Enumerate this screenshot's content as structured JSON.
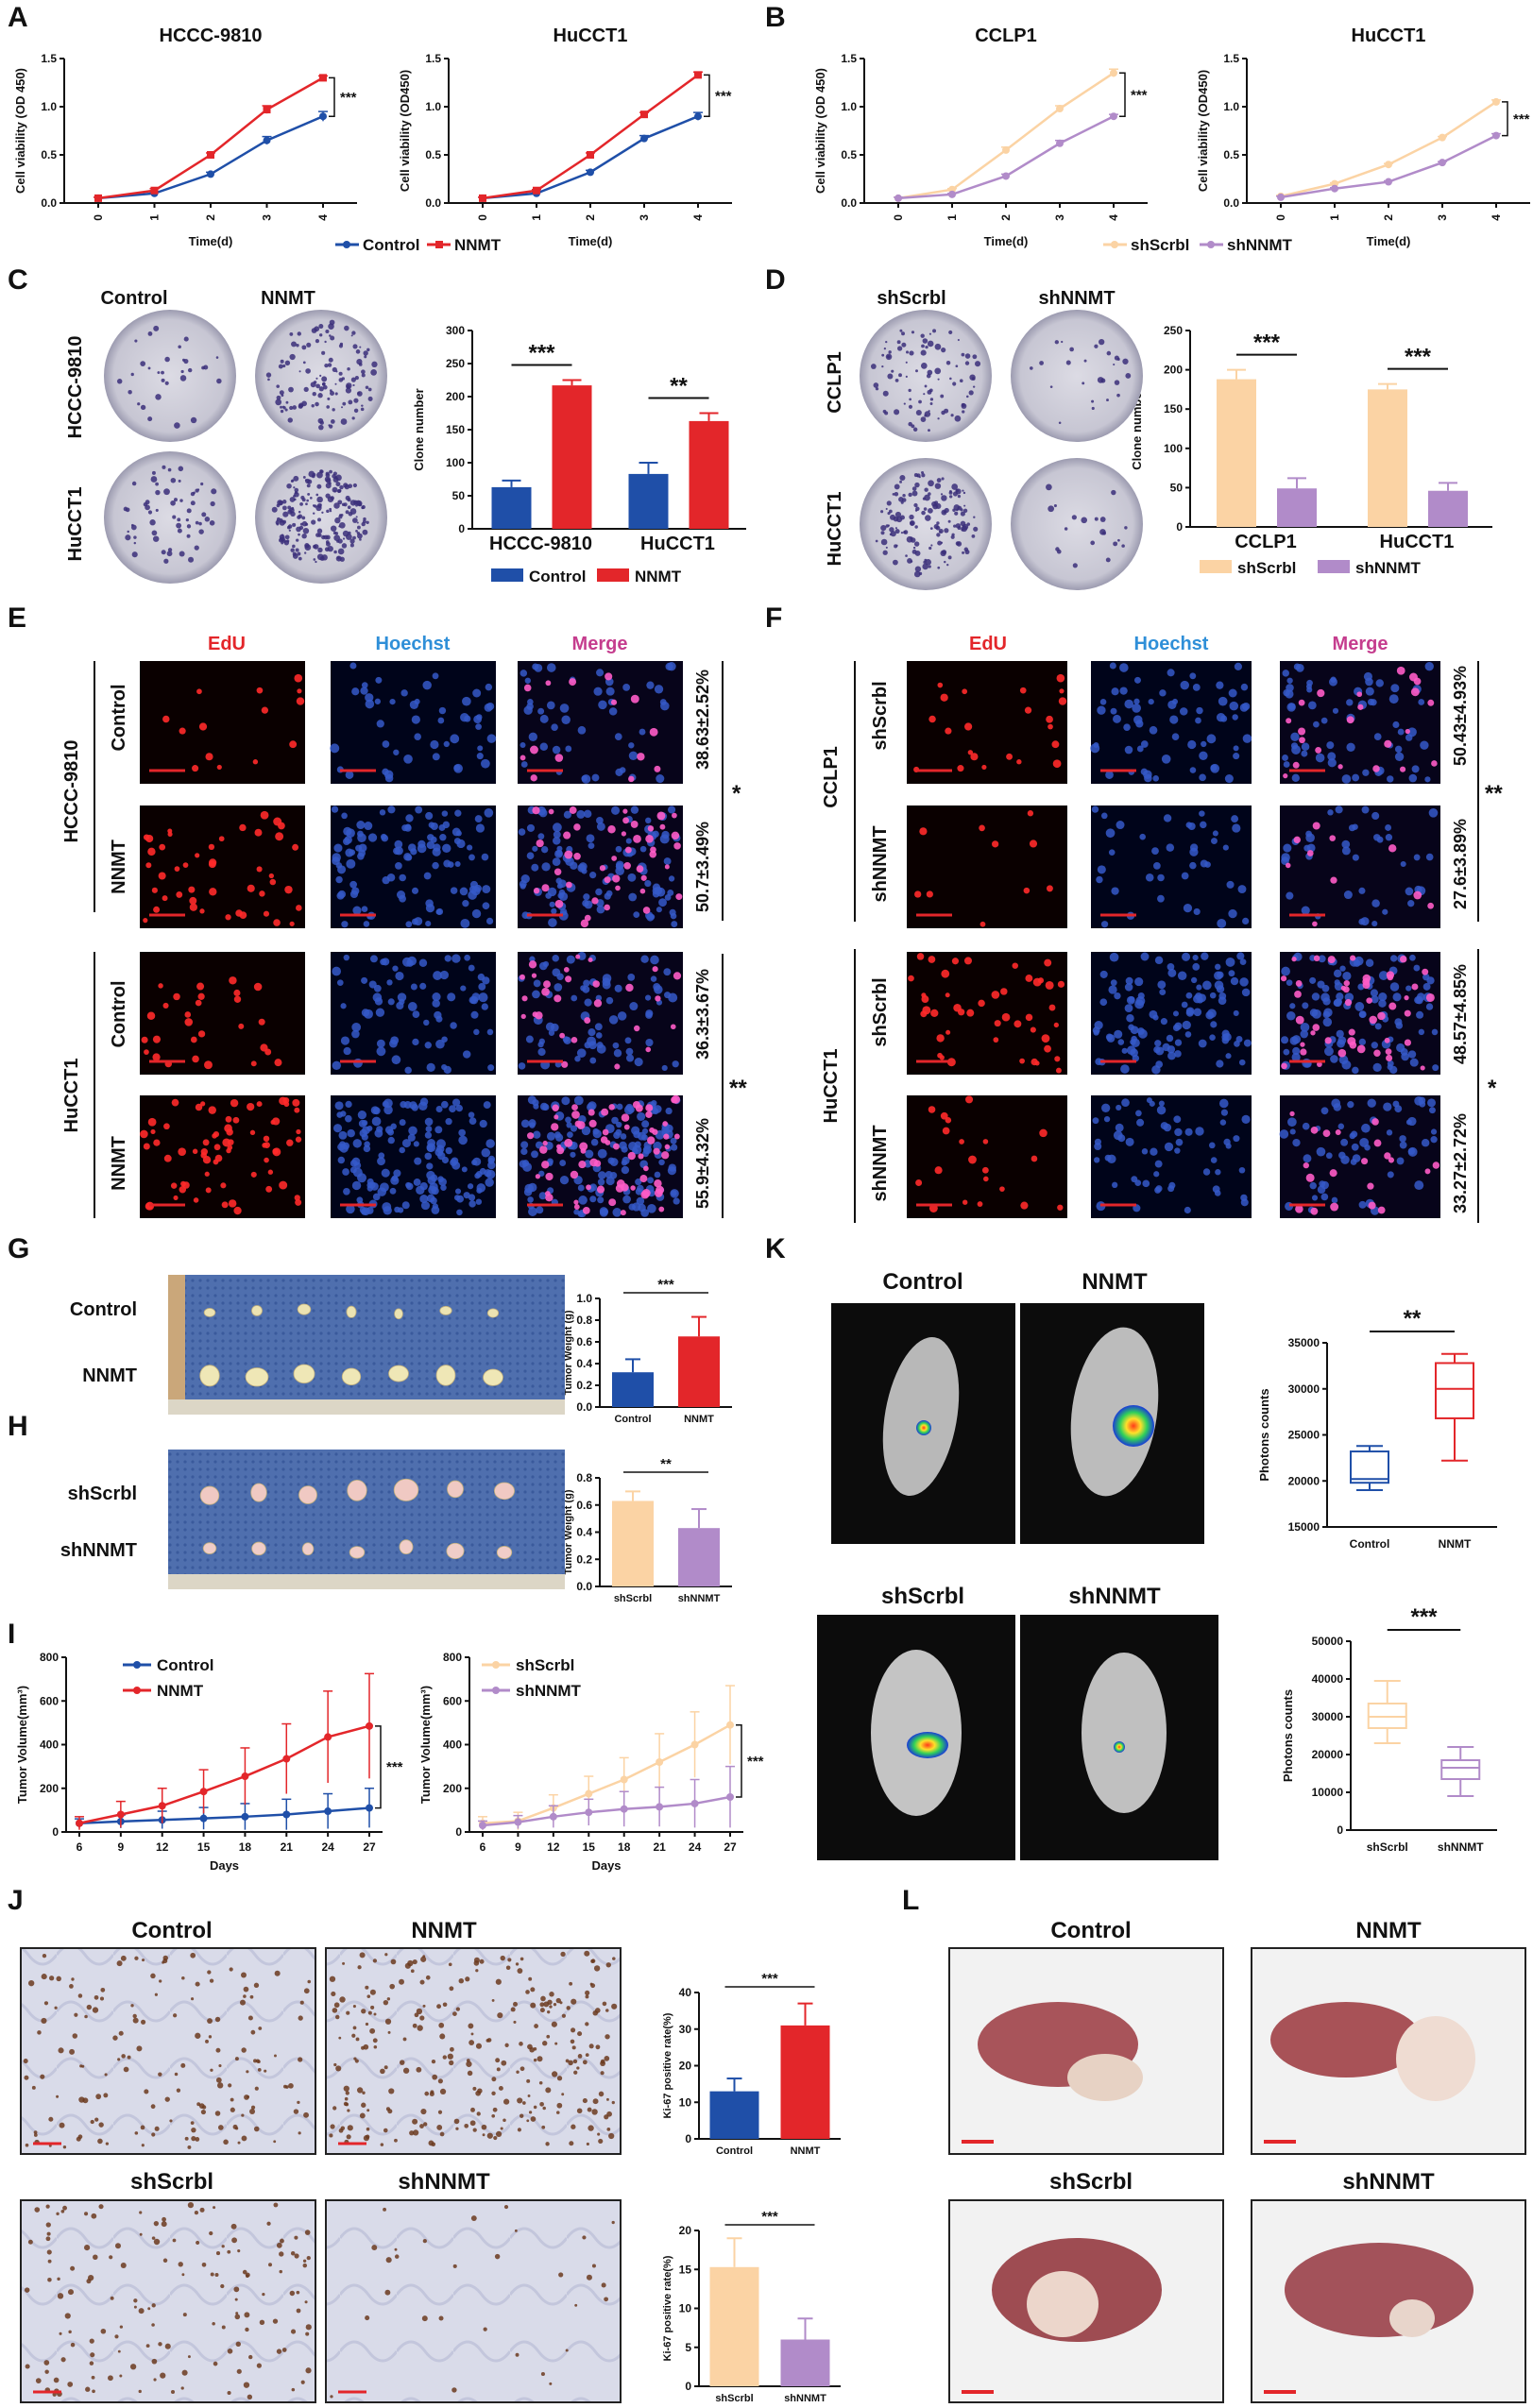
{
  "panels": {
    "A": "A",
    "B": "B",
    "C": "C",
    "D": "D",
    "E": "E",
    "F": "F",
    "G": "G",
    "H": "H",
    "I": "I",
    "J": "J",
    "K": "K",
    "L": "L"
  },
  "colors": {
    "control": "#1f4fa8",
    "nnmt": "#e3262a",
    "shscrbl": "#fbd3a4",
    "shnnmt": "#b18bc9",
    "edu": "#e3262a",
    "hoechst": "#2f8fd8",
    "merge": "#c53d8e"
  },
  "growth_common": {
    "x_label": "Time(d)",
    "y_label_a": "Cell viability (OD 450)",
    "y_label_b": "Cell viability (OD450)",
    "x_ticks": [
      "0",
      "1",
      "2",
      "3",
      "4"
    ],
    "y_ticks": [
      "0.0",
      "0.5",
      "1.0",
      "1.5"
    ]
  },
  "legend_A": [
    "Control",
    "NNMT"
  ],
  "legend_B": [
    "shScrbl",
    "shNNMT"
  ],
  "panel_C": {
    "col_titles": [
      "Control",
      "NNMT"
    ],
    "row_labels": [
      "HCCC-9810",
      "HuCCT1"
    ],
    "legend": [
      "Control",
      "NNMT"
    ]
  },
  "panel_D": {
    "col_titles": [
      "shScrbl",
      "shNNMT"
    ],
    "row_labels": [
      "CCLP1",
      "HuCCT1"
    ],
    "legend": [
      "shScrbl",
      "shNNMT"
    ]
  },
  "panel_E": {
    "channels": [
      "EdU",
      "Hoechst",
      "Merge"
    ],
    "groups": [
      "HCCC-9810",
      "HuCCT1"
    ],
    "rows": [
      "Control",
      "NNMT",
      "Control",
      "NNMT"
    ],
    "pcts": [
      "38.63±2.52%",
      "50.7±3.49%",
      "36.3±3.67%",
      "55.9±4.32%"
    ],
    "sigs": [
      "*",
      "**"
    ]
  },
  "panel_F": {
    "channels": [
      "EdU",
      "Hoechst",
      "Merge"
    ],
    "groups": [
      "CCLP1",
      "HuCCT1"
    ],
    "rows": [
      "shScrbl",
      "shNNMT",
      "shScrbl",
      "shNNMT"
    ],
    "pcts": [
      "50.43±4.93%",
      "27.6±3.89%",
      "48.57±4.85%",
      "33.27±2.72%"
    ],
    "sigs": [
      "**",
      "*"
    ]
  },
  "panel_G": {
    "rows": [
      "Control",
      "NNMT"
    ]
  },
  "panel_H": {
    "rows": [
      "shScrbl",
      "shNNMT"
    ]
  },
  "panel_K": {
    "titles_top": [
      "Control",
      "NNMT"
    ],
    "titles_bottom": [
      "shScrbl",
      "shNNMT"
    ]
  },
  "panel_J": {
    "titles_top": [
      "Control",
      "NNMT"
    ],
    "titles_bottom": [
      "shScrbl",
      "shNNMT"
    ]
  },
  "panel_L": {
    "titles_top": [
      "Control",
      "NNMT"
    ],
    "titles_bottom": [
      "shScrbl",
      "shNNMT"
    ]
  },
  "chart_data": [
    {
      "id": "A1",
      "type": "line",
      "title": "HCCC-9810",
      "xlabel": "Time(d)",
      "ylabel": "Cell viability (OD 450)",
      "x": [
        0,
        1,
        2,
        3,
        4
      ],
      "ylim": [
        0,
        1.5
      ],
      "sig": "***",
      "series": [
        {
          "name": "Control",
          "values": [
            0.05,
            0.1,
            0.3,
            0.65,
            0.9
          ],
          "err": [
            0.01,
            0.01,
            0.02,
            0.04,
            0.05
          ]
        },
        {
          "name": "NNMT",
          "values": [
            0.05,
            0.13,
            0.5,
            0.97,
            1.3
          ],
          "err": [
            0.01,
            0.02,
            0.02,
            0.04,
            0.02
          ]
        }
      ]
    },
    {
      "id": "A2",
      "type": "line",
      "title": "HuCCT1",
      "xlabel": "Time(d)",
      "ylabel": "Cell viability (OD450)",
      "x": [
        0,
        1,
        2,
        3,
        4
      ],
      "ylim": [
        0,
        1.5
      ],
      "sig": "***",
      "series": [
        {
          "name": "Control",
          "values": [
            0.05,
            0.1,
            0.32,
            0.67,
            0.9
          ],
          "err": [
            0.01,
            0.01,
            0.02,
            0.03,
            0.04
          ]
        },
        {
          "name": "NNMT",
          "values": [
            0.05,
            0.13,
            0.5,
            0.92,
            1.33
          ],
          "err": [
            0.01,
            0.01,
            0.02,
            0.02,
            0.03
          ]
        }
      ]
    },
    {
      "id": "B1",
      "type": "line",
      "title": "CCLP1",
      "xlabel": "Time(d)",
      "ylabel": "Cell viability (OD 450)",
      "x": [
        0,
        1,
        2,
        3,
        4
      ],
      "ylim": [
        0,
        1.5
      ],
      "sig": "***",
      "series": [
        {
          "name": "shScrbl",
          "values": [
            0.05,
            0.14,
            0.55,
            0.98,
            1.35
          ],
          "err": [
            0.01,
            0.01,
            0.03,
            0.03,
            0.04
          ]
        },
        {
          "name": "shNNMT",
          "values": [
            0.05,
            0.09,
            0.28,
            0.62,
            0.9
          ],
          "err": [
            0.01,
            0.01,
            0.02,
            0.03,
            0.02
          ]
        }
      ]
    },
    {
      "id": "B2",
      "type": "line",
      "title": "HuCCT1",
      "xlabel": "Time(d)",
      "ylabel": "Cell viability (OD450)",
      "x": [
        0,
        1,
        2,
        3,
        4
      ],
      "ylim": [
        0,
        1.5
      ],
      "sig": "***",
      "series": [
        {
          "name": "shScrbl",
          "values": [
            0.07,
            0.2,
            0.4,
            0.68,
            1.05
          ],
          "err": [
            0.01,
            0.01,
            0.01,
            0.01,
            0.02
          ]
        },
        {
          "name": "shNNMT",
          "values": [
            0.06,
            0.15,
            0.22,
            0.42,
            0.7
          ],
          "err": [
            0.01,
            0.01,
            0.01,
            0.01,
            0.02
          ]
        }
      ]
    },
    {
      "id": "C",
      "type": "bar",
      "ylabel": "Clone number",
      "categories": [
        "HCCC-9810",
        "HuCCT1"
      ],
      "ylim": [
        0,
        300
      ],
      "yticks": [
        "0",
        "50",
        "100",
        "150",
        "200",
        "250",
        "300"
      ],
      "sig": [
        "***",
        "**"
      ],
      "series": [
        {
          "name": "Control",
          "values": [
            63,
            83
          ],
          "err": [
            10,
            17
          ]
        },
        {
          "name": "NNMT",
          "values": [
            217,
            163
          ],
          "err": [
            8,
            12
          ]
        }
      ]
    },
    {
      "id": "D",
      "type": "bar",
      "ylabel": "Clone number",
      "categories": [
        "CCLP1",
        "HuCCT1"
      ],
      "ylim": [
        0,
        250
      ],
      "yticks": [
        "0",
        "50",
        "100",
        "150",
        "200",
        "250"
      ],
      "sig": [
        "***",
        "***"
      ],
      "series": [
        {
          "name": "shScrbl",
          "values": [
            188,
            175
          ],
          "err": [
            12,
            7
          ]
        },
        {
          "name": "shNNMT",
          "values": [
            49,
            46
          ],
          "err": [
            13,
            10
          ]
        }
      ]
    },
    {
      "id": "G",
      "type": "bar",
      "ylabel": "Tumor Weight (g)",
      "categories": [
        "Control",
        "NNMT"
      ],
      "ylim": [
        0,
        1.0
      ],
      "yticks": [
        "0.0",
        "0.2",
        "0.4",
        "0.6",
        "0.8",
        "1.0"
      ],
      "sig": "***",
      "values": [
        0.32,
        0.65
      ],
      "err": [
        0.12,
        0.18
      ]
    },
    {
      "id": "H",
      "type": "bar",
      "ylabel": "Tumor Weight (g)",
      "categories": [
        "shScrbl",
        "shNNMT"
      ],
      "ylim": [
        0,
        0.8
      ],
      "yticks": [
        "0.0",
        "0.2",
        "0.4",
        "0.6",
        "0.8"
      ],
      "sig": "**",
      "values": [
        0.63,
        0.43
      ],
      "err": [
        0.07,
        0.14
      ]
    },
    {
      "id": "I1",
      "type": "line",
      "xlabel": "Days",
      "ylabel": "Tumor Volume(mm³)",
      "x": [
        6,
        9,
        12,
        15,
        18,
        21,
        24,
        27
      ],
      "ylim": [
        0,
        800
      ],
      "yticks": [
        "0",
        "200",
        "400",
        "600",
        "800"
      ],
      "sig": "***",
      "series": [
        {
          "name": "Control",
          "values": [
            40,
            48,
            55,
            62,
            70,
            80,
            95,
            110
          ],
          "err": [
            20,
            30,
            40,
            50,
            60,
            70,
            80,
            90
          ]
        },
        {
          "name": "NNMT",
          "values": [
            40,
            80,
            120,
            185,
            255,
            335,
            435,
            485
          ],
          "err": [
            30,
            60,
            80,
            100,
            130,
            160,
            210,
            240
          ]
        }
      ]
    },
    {
      "id": "I2",
      "type": "line",
      "xlabel": "Days",
      "ylabel": "Tumor Volume(mm³)",
      "x": [
        6,
        9,
        12,
        15,
        18,
        21,
        24,
        27
      ],
      "ylim": [
        0,
        800
      ],
      "yticks": [
        "0",
        "200",
        "400",
        "600",
        "800"
      ],
      "sig": "***",
      "series": [
        {
          "name": "shScrbl",
          "values": [
            40,
            50,
            110,
            175,
            240,
            320,
            400,
            490
          ],
          "err": [
            30,
            40,
            60,
            80,
            100,
            130,
            150,
            180
          ]
        },
        {
          "name": "shNNMT",
          "values": [
            30,
            45,
            70,
            90,
            105,
            115,
            130,
            160
          ],
          "err": [
            20,
            30,
            50,
            60,
            80,
            90,
            110,
            140
          ]
        }
      ]
    },
    {
      "id": "K1",
      "type": "box",
      "ylabel": "Photons counts",
      "categories": [
        "Control",
        "NNMT"
      ],
      "ylim": [
        15000,
        35000
      ],
      "yticks": [
        "15000",
        "20000",
        "25000",
        "30000",
        "35000"
      ],
      "sig": "**",
      "boxes": [
        {
          "min": 19000,
          "q1": 19800,
          "median": 20200,
          "q3": 23200,
          "max": 23800
        },
        {
          "min": 22200,
          "q1": 26800,
          "median": 30000,
          "q3": 32800,
          "max": 33800
        }
      ]
    },
    {
      "id": "K2",
      "type": "box",
      "ylabel": "Photons counts",
      "categories": [
        "shScrbl",
        "shNNMT"
      ],
      "ylim": [
        0,
        50000
      ],
      "yticks": [
        "0",
        "10000",
        "20000",
        "30000",
        "40000",
        "50000"
      ],
      "sig": "***",
      "boxes": [
        {
          "min": 23000,
          "q1": 27000,
          "median": 30000,
          "q3": 33500,
          "max": 39500
        },
        {
          "min": 9000,
          "q1": 13500,
          "median": 16500,
          "q3": 18500,
          "max": 22000
        }
      ]
    },
    {
      "id": "J1",
      "type": "bar",
      "ylabel": "Ki-67 positive rate(%)",
      "categories": [
        "Control",
        "NNMT"
      ],
      "ylim": [
        0,
        40
      ],
      "yticks": [
        "0",
        "10",
        "20",
        "30",
        "40"
      ],
      "sig": "***",
      "values": [
        13,
        31
      ],
      "err": [
        3.5,
        6
      ]
    },
    {
      "id": "J2",
      "type": "bar",
      "ylabel": "Ki-67 positive rate(%)",
      "categories": [
        "shScrbl",
        "shNNMT"
      ],
      "ylim": [
        0,
        20
      ],
      "yticks": [
        "0",
        "5",
        "10",
        "15",
        "20"
      ],
      "sig": "***",
      "values": [
        15.3,
        6
      ],
      "err": [
        3.7,
        2.7
      ]
    }
  ]
}
